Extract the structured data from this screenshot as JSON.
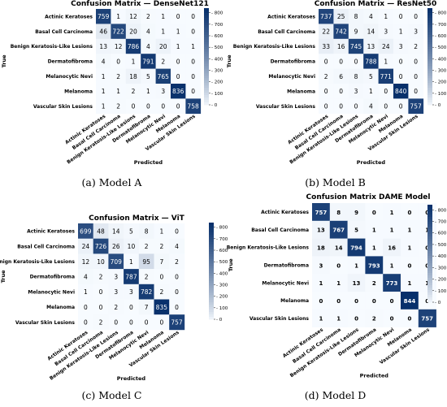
{
  "colors": {
    "low": "#f7fbff",
    "high": "#08306b"
  },
  "chart_data": [
    {
      "type": "heatmap",
      "title": "Confusion Matrix — DenseNet121",
      "caption": "(a) Model A",
      "xlabel": "Predicted",
      "ylabel": "True",
      "labels": [
        "Actinic Keratoses",
        "Basal Cell Carcinoma",
        "Benign Keratosis-Like Lesions",
        "Dermatofibroma",
        "Melanocytic Nevi",
        "Melanoma",
        "Vascular Skin Lesions"
      ],
      "colorbar_ticks": [
        0,
        100,
        200,
        300,
        400,
        500,
        600,
        700,
        800
      ],
      "zlim": [
        0,
        840
      ],
      "matrix": [
        [
          759,
          1,
          12,
          2,
          1,
          0,
          0
        ],
        [
          46,
          722,
          20,
          4,
          1,
          1,
          0
        ],
        [
          13,
          12,
          786,
          4,
          20,
          1,
          1
        ],
        [
          4,
          0,
          1,
          791,
          2,
          0,
          0
        ],
        [
          1,
          2,
          18,
          5,
          765,
          0,
          0
        ],
        [
          1,
          1,
          2,
          1,
          3,
          836,
          0
        ],
        [
          1,
          2,
          0,
          0,
          0,
          0,
          758
        ]
      ]
    },
    {
      "type": "heatmap",
      "title": "Confusion Matrix — ResNet50",
      "caption": "(b) Model B",
      "xlabel": "Predicted",
      "ylabel": "True",
      "labels": [
        "Actinic Keratoses",
        "Basal Cell Carcinoma",
        "Benign Keratosis-Like Lesions",
        "Dermatofibroma",
        "Melanocytic Nevi",
        "Melanoma",
        "Vascular Skin Lesions"
      ],
      "colorbar_ticks": [
        0,
        100,
        200,
        300,
        400,
        500,
        600,
        700,
        800
      ],
      "zlim": [
        0,
        840
      ],
      "matrix": [
        [
          737,
          25,
          8,
          4,
          1,
          0,
          0
        ],
        [
          22,
          742,
          9,
          14,
          3,
          1,
          3
        ],
        [
          33,
          16,
          745,
          13,
          24,
          3,
          2
        ],
        [
          0,
          0,
          0,
          788,
          1,
          0,
          0
        ],
        [
          2,
          6,
          8,
          5,
          771,
          0,
          0
        ],
        [
          0,
          0,
          3,
          1,
          0,
          840,
          0
        ],
        [
          0,
          0,
          0,
          4,
          0,
          0,
          757
        ]
      ]
    },
    {
      "type": "heatmap",
      "title": "Confusion Matrix — ViT",
      "caption": "(c) Model C",
      "xlabel": "Predicted",
      "ylabel": "True",
      "labels": [
        "Actinic Keratoses",
        "Basal Cell Carcinoma",
        "Benign Keratosis-Like Lesions",
        "Dermatofibroma",
        "Melanocytic Nevi",
        "Melanoma",
        "Vascular Skin Lesions"
      ],
      "colorbar_ticks": [
        0,
        100,
        200,
        300,
        400,
        500,
        600,
        700,
        800
      ],
      "zlim": [
        0,
        840
      ],
      "matrix": [
        [
          699,
          48,
          14,
          5,
          8,
          1,
          0
        ],
        [
          24,
          726,
          26,
          10,
          2,
          2,
          4
        ],
        [
          12,
          10,
          709,
          1,
          95,
          7,
          2
        ],
        [
          4,
          2,
          3,
          787,
          2,
          0,
          0
        ],
        [
          1,
          0,
          3,
          3,
          782,
          2,
          0
        ],
        [
          0,
          0,
          2,
          0,
          7,
          835,
          0
        ],
        [
          0,
          2,
          0,
          0,
          0,
          0,
          757
        ]
      ]
    },
    {
      "type": "heatmap",
      "title": "Confusion Matrix DAME Model",
      "caption": "(d) Model D",
      "xlabel": "Predicted",
      "ylabel": "True",
      "labels": [
        "Actinic Keratoses",
        "Basal Cell Carcinoma",
        "Benign Keratosis-Like Lesions",
        "Dermatofibroma",
        "Melanocytic Nevi",
        "Melanoma",
        "Vascular Skin Lesions"
      ],
      "colorbar_ticks": [
        0,
        100,
        200,
        300,
        400,
        500,
        600,
        700,
        800
      ],
      "zlim": [
        0,
        844
      ],
      "matrix": [
        [
          757,
          8,
          9,
          0,
          1,
          0,
          0
        ],
        [
          13,
          767,
          5,
          1,
          1,
          1,
          1
        ],
        [
          18,
          14,
          794,
          1,
          16,
          1,
          0
        ],
        [
          3,
          0,
          1,
          793,
          1,
          0,
          0
        ],
        [
          1,
          1,
          13,
          2,
          773,
          1,
          1
        ],
        [
          0,
          0,
          0,
          0,
          0,
          844,
          0
        ],
        [
          1,
          1,
          0,
          2,
          0,
          0,
          757
        ]
      ]
    }
  ]
}
